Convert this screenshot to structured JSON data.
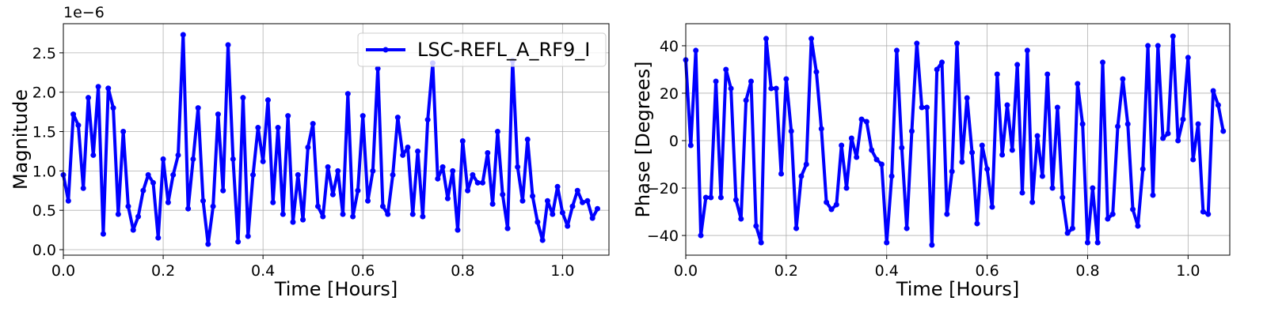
{
  "chart_data": [
    {
      "type": "line",
      "ylabel": "Magnitude",
      "xlabel": "Time [Hours]",
      "offset_text": "1e−6",
      "grid": true,
      "legend": "upper right",
      "x": [
        0,
        0.01,
        0.02,
        0.03,
        0.04,
        0.05,
        0.06,
        0.07,
        0.08,
        0.09,
        0.1,
        0.11,
        0.12,
        0.13,
        0.14,
        0.15,
        0.16,
        0.17,
        0.18,
        0.19,
        0.2,
        0.21,
        0.22,
        0.23,
        0.24,
        0.25,
        0.26,
        0.27,
        0.28,
        0.29,
        0.3,
        0.31,
        0.32,
        0.33,
        0.34,
        0.35,
        0.36,
        0.37,
        0.38,
        0.39,
        0.4,
        0.41,
        0.42,
        0.43,
        0.44,
        0.45,
        0.46,
        0.47,
        0.48,
        0.49,
        0.5,
        0.51,
        0.52,
        0.53,
        0.54,
        0.55,
        0.56,
        0.57,
        0.58,
        0.59,
        0.6,
        0.61,
        0.62,
        0.63,
        0.64,
        0.65,
        0.66,
        0.67,
        0.68,
        0.69,
        0.7,
        0.71,
        0.72,
        0.73,
        0.74,
        0.75,
        0.76,
        0.77,
        0.78,
        0.79,
        0.8,
        0.81,
        0.82,
        0.83,
        0.84,
        0.85,
        0.86,
        0.87,
        0.88,
        0.89,
        0.9,
        0.91,
        0.92,
        0.93,
        0.94,
        0.95,
        0.96,
        0.97,
        0.98,
        0.99,
        1.0,
        1.01,
        1.02,
        1.03,
        1.04,
        1.05,
        1.06,
        1.07
      ],
      "series": [
        {
          "name": "LSC-REFL_A_RF9_I",
          "color": "#0000ff",
          "values": [
            0.95,
            0.62,
            1.72,
            1.58,
            0.78,
            1.93,
            1.2,
            2.07,
            0.2,
            2.05,
            1.8,
            0.45,
            1.5,
            0.55,
            0.25,
            0.42,
            0.75,
            0.95,
            0.85,
            0.15,
            1.15,
            0.6,
            0.95,
            1.2,
            2.73,
            0.52,
            1.15,
            1.8,
            0.62,
            0.07,
            0.55,
            1.72,
            0.75,
            2.6,
            1.15,
            0.1,
            1.93,
            0.17,
            0.95,
            1.55,
            1.12,
            1.9,
            0.6,
            1.55,
            0.45,
            1.7,
            0.35,
            0.95,
            0.38,
            1.3,
            1.6,
            0.55,
            0.42,
            1.05,
            0.7,
            1.0,
            0.45,
            1.98,
            0.42,
            0.75,
            1.7,
            0.62,
            1.0,
            2.3,
            0.55,
            0.45,
            0.95,
            1.68,
            1.2,
            1.3,
            0.45,
            1.25,
            0.42,
            1.65,
            2.37,
            0.9,
            1.05,
            0.65,
            1.0,
            0.25,
            1.38,
            0.75,
            0.95,
            0.85,
            0.85,
            1.23,
            0.58,
            1.5,
            0.7,
            0.27,
            2.4,
            1.05,
            0.62,
            1.4,
            0.68,
            0.35,
            0.12,
            0.62,
            0.45,
            0.8,
            0.47,
            0.3,
            0.55,
            0.75,
            0.6,
            0.62,
            0.4,
            0.52
          ]
        }
      ],
      "xlim": [
        0,
        1.093
      ],
      "ylim": [
        -0.07,
        2.87
      ],
      "xticks": [
        {
          "value": 0,
          "label": "0.0"
        },
        0.2,
        0.4,
        0.6,
        0.8,
        {
          "value": 1,
          "label": "1.0"
        }
      ],
      "yticks": [
        {
          "value": 0,
          "label": "0.0"
        },
        0.5,
        {
          "value": 1,
          "label": "1.0"
        },
        1.5,
        {
          "value": 2,
          "label": "2.0"
        },
        2.5
      ]
    },
    {
      "type": "line",
      "ylabel": "Phase [Degrees]",
      "xlabel": "Time [Hours]",
      "grid": true,
      "x": [
        0,
        0.01,
        0.02,
        0.03,
        0.04,
        0.05,
        0.06,
        0.07,
        0.08,
        0.09,
        0.1,
        0.11,
        0.12,
        0.13,
        0.14,
        0.15,
        0.16,
        0.17,
        0.18,
        0.19,
        0.2,
        0.21,
        0.22,
        0.23,
        0.24,
        0.25,
        0.26,
        0.27,
        0.28,
        0.29,
        0.3,
        0.31,
        0.32,
        0.33,
        0.34,
        0.35,
        0.36,
        0.37,
        0.38,
        0.39,
        0.4,
        0.41,
        0.42,
        0.43,
        0.44,
        0.45,
        0.46,
        0.47,
        0.48,
        0.49,
        0.5,
        0.51,
        0.52,
        0.53,
        0.54,
        0.55,
        0.56,
        0.57,
        0.58,
        0.59,
        0.6,
        0.61,
        0.62,
        0.63,
        0.64,
        0.65,
        0.66,
        0.67,
        0.68,
        0.69,
        0.7,
        0.71,
        0.72,
        0.73,
        0.74,
        0.75,
        0.76,
        0.77,
        0.78,
        0.79,
        0.8,
        0.81,
        0.82,
        0.83,
        0.84,
        0.85,
        0.86,
        0.87,
        0.88,
        0.89,
        0.9,
        0.91,
        0.92,
        0.93,
        0.94,
        0.95,
        0.96,
        0.97,
        0.98,
        0.99,
        1.0,
        1.01,
        1.02,
        1.03,
        1.04,
        1.05,
        1.06,
        1.07
      ],
      "series": [
        {
          "color": "#0000ff",
          "values": [
            34,
            -2,
            38,
            -40,
            -24,
            -24,
            25,
            -24,
            30,
            22,
            -25,
            -33,
            17,
            25,
            -36,
            -43,
            43,
            22,
            22,
            -14,
            26,
            4,
            -37,
            -15,
            -10,
            43,
            29,
            5,
            -26,
            -29,
            -27,
            -2,
            -20,
            1,
            -7,
            9,
            8,
            -4,
            -8,
            -10,
            -43,
            -15,
            38,
            -3,
            -37,
            4,
            41,
            14,
            14,
            -44,
            30,
            33,
            -31,
            -13,
            41,
            -9,
            18,
            -5,
            -35,
            -2,
            -12,
            -28,
            28,
            -6,
            15,
            -4,
            32,
            -22,
            38,
            -26,
            2,
            -15,
            28,
            -20,
            14,
            -24,
            -39,
            -37,
            24,
            7,
            -43,
            -20,
            -43,
            33,
            -33,
            -31,
            6,
            26,
            7,
            -29,
            -36,
            -12,
            40,
            -23,
            40,
            1,
            3,
            44,
            0,
            9,
            35,
            -8,
            7,
            -30,
            -31,
            21,
            15,
            4
          ]
        }
      ],
      "xlim": [
        0,
        1.083
      ],
      "ylim": [
        -48.3,
        49.3
      ],
      "xticks": [
        {
          "value": 0,
          "label": "0.0"
        },
        0.2,
        0.4,
        0.6,
        0.8,
        {
          "value": 1,
          "label": "1.0"
        }
      ],
      "yticks": [
        {
          "value": -40,
          "label": "−40"
        },
        {
          "value": -20,
          "label": "−20"
        },
        0,
        20,
        40
      ]
    }
  ]
}
